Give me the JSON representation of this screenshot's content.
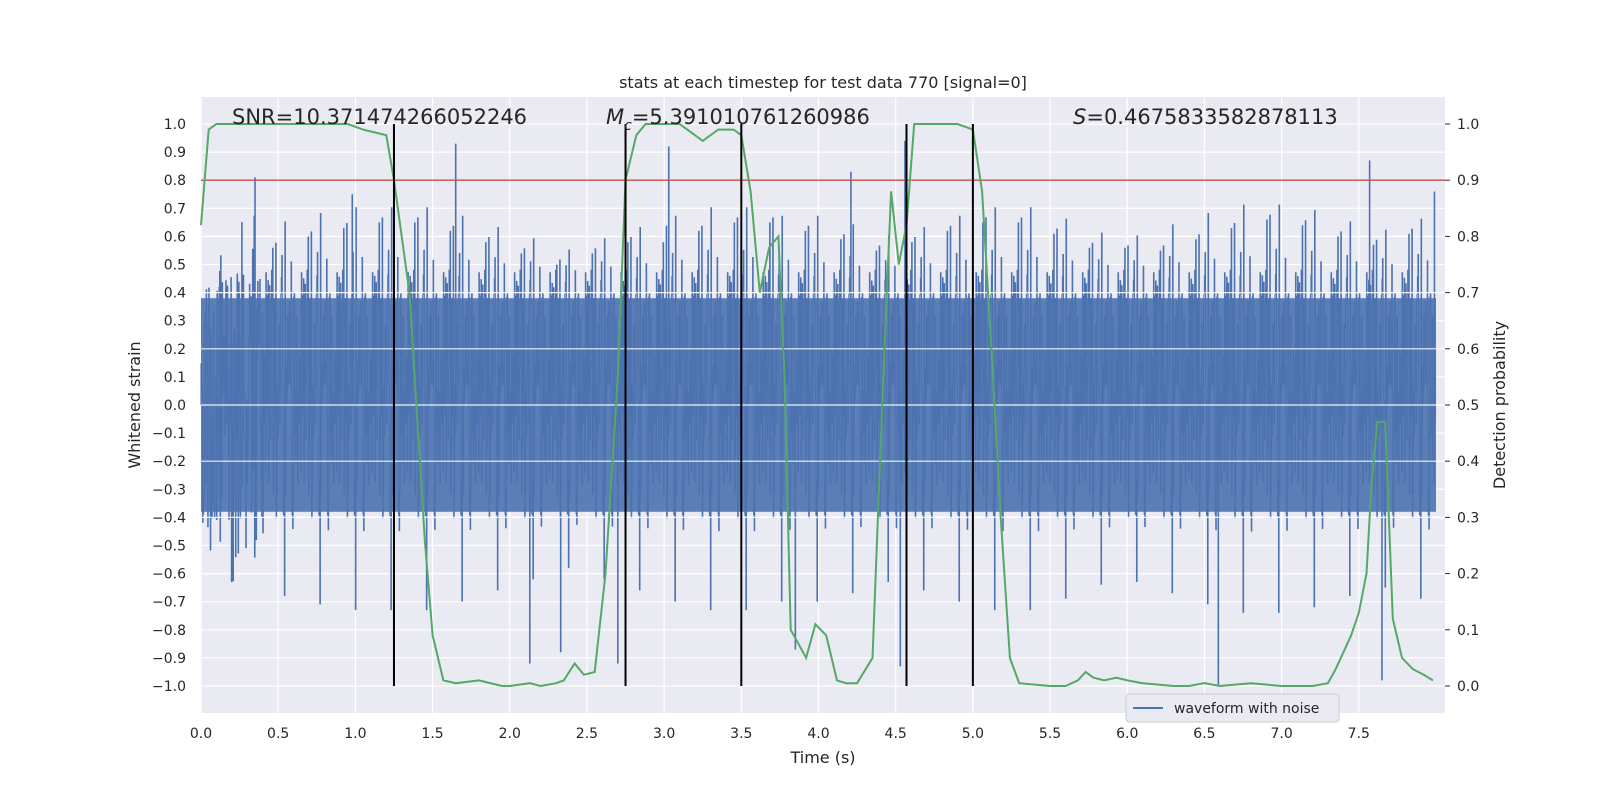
{
  "chart_data": {
    "type": "line",
    "title": "stats at each timestep for test data 770 [signal=0]",
    "xlabel": "Time (s)",
    "ylabel_left": "Whitened strain",
    "ylabel_right": "Detection probability",
    "xlim": [
      0.0,
      8.0
    ],
    "ylim_left": [
      -1.1,
      1.1
    ],
    "ylim_right": [
      -0.05,
      1.05
    ],
    "x_ticks": [
      "0.0",
      "0.5",
      "1.0",
      "1.5",
      "2.0",
      "2.5",
      "3.0",
      "3.5",
      "4.0",
      "4.5",
      "5.0",
      "5.5",
      "6.0",
      "6.5",
      "7.0",
      "7.5"
    ],
    "y_left_ticks": [
      "1.0",
      "0.9",
      "0.8",
      "0.7",
      "0.6",
      "0.5",
      "0.4",
      "0.3",
      "0.2",
      "0.1",
      "0.0",
      "−0.1",
      "−0.2",
      "−0.3",
      "−0.4",
      "−0.5",
      "−0.6",
      "−0.7",
      "−0.8",
      "−0.9",
      "−1.0"
    ],
    "y_right_ticks": [
      "1.0",
      "0.9",
      "0.8",
      "0.7",
      "0.6",
      "0.5",
      "0.4",
      "0.3",
      "0.2",
      "0.1",
      "0.0"
    ],
    "grid": true,
    "legend": {
      "placement": "lower-right",
      "entries": [
        "waveform with noise"
      ]
    },
    "annotations": {
      "snr": "SNR=10.371474266052246",
      "mc_symbol": "M",
      "mc_sub": "c",
      "mc_value": "=5.391010761260986",
      "s_symbol": "S",
      "s_value": "=0.4675833582878113"
    },
    "threshold": {
      "value": 0.8,
      "color": "#c44e52"
    },
    "vertical_lines_x": [
      1.25,
      2.75,
      3.5,
      4.57,
      5.0
    ],
    "series": [
      {
        "name": "waveform with noise",
        "kind": "strain",
        "color": "#4c72b0",
        "envelope": [
          0.34,
          0.38,
          0.42,
          0.45,
          0.47,
          0.47,
          0.44,
          0.4,
          0.36,
          0.32,
          0.36,
          0.4,
          0.44,
          0.47,
          0.47,
          0.44,
          0.41,
          0.37,
          0.4,
          0.44,
          0.47,
          0.47,
          0.43,
          0.38,
          0.37,
          0.41,
          0.45,
          0.48,
          0.46,
          0.42,
          0.39,
          0.43
        ],
        "spikes": [
          [
            0.35,
            0.81
          ],
          [
            0.98,
            0.75
          ],
          [
            1.65,
            0.93
          ],
          [
            2.13,
            -0.92
          ],
          [
            2.33,
            -0.88
          ],
          [
            2.7,
            -0.92
          ],
          [
            3.03,
            0.92
          ],
          [
            3.85,
            -0.87
          ],
          [
            4.21,
            0.83
          ],
          [
            4.53,
            -0.93
          ],
          [
            4.56,
            0.94
          ],
          [
            6.59,
            -1.0
          ],
          [
            7.57,
            0.87
          ],
          [
            7.65,
            -0.98
          ],
          [
            7.99,
            0.76
          ]
        ]
      },
      {
        "name": "",
        "kind": "probability",
        "color": "#55a868",
        "x": [
          0.0,
          0.05,
          0.1,
          0.2,
          0.4,
          0.6,
          0.8,
          0.95,
          1.05,
          1.2,
          1.25,
          1.35,
          1.45,
          1.5,
          1.57,
          1.65,
          1.8,
          1.95,
          2.0,
          2.13,
          2.2,
          2.3,
          2.35,
          2.42,
          2.48,
          2.55,
          2.62,
          2.7,
          2.75,
          2.82,
          2.88,
          3.0,
          3.1,
          3.2,
          3.25,
          3.35,
          3.45,
          3.5,
          3.56,
          3.62,
          3.68,
          3.74,
          3.78,
          3.82,
          3.86,
          3.92,
          3.98,
          4.05,
          4.12,
          4.18,
          4.25,
          4.35,
          4.42,
          4.47,
          4.52,
          4.57,
          4.62,
          4.7,
          4.8,
          4.9,
          5.0,
          5.06,
          5.12,
          5.18,
          5.24,
          5.3,
          5.5,
          5.6,
          5.68,
          5.73,
          5.78,
          5.85,
          5.93,
          6.0,
          6.1,
          6.3,
          6.4,
          6.5,
          6.6,
          6.8,
          7.0,
          7.2,
          7.3,
          7.35,
          7.4,
          7.45,
          7.5,
          7.55,
          7.58,
          7.62,
          7.67,
          7.72,
          7.78,
          7.85,
          7.92,
          7.98
        ],
        "values": [
          0.82,
          0.99,
          1.0,
          1.0,
          1.0,
          1.0,
          1.0,
          1.0,
          0.99,
          0.98,
          0.9,
          0.7,
          0.26,
          0.09,
          0.01,
          0.005,
          0.01,
          0.0,
          0.0,
          0.005,
          0.0,
          0.005,
          0.01,
          0.04,
          0.02,
          0.025,
          0.2,
          0.55,
          0.9,
          0.98,
          1.0,
          1.0,
          1.0,
          0.98,
          0.97,
          0.99,
          0.99,
          0.98,
          0.88,
          0.7,
          0.78,
          0.8,
          0.55,
          0.1,
          0.08,
          0.05,
          0.11,
          0.09,
          0.01,
          0.005,
          0.005,
          0.05,
          0.55,
          0.88,
          0.75,
          0.82,
          1.0,
          1.0,
          1.0,
          1.0,
          0.99,
          0.88,
          0.6,
          0.3,
          0.05,
          0.005,
          0.0,
          0.0,
          0.01,
          0.025,
          0.015,
          0.01,
          0.015,
          0.01,
          0.005,
          0.0,
          0.0,
          0.005,
          0.0,
          0.005,
          0.0,
          0.0,
          0.005,
          0.03,
          0.06,
          0.09,
          0.13,
          0.2,
          0.35,
          0.47,
          0.47,
          0.12,
          0.05,
          0.03,
          0.02,
          0.01
        ]
      }
    ]
  }
}
